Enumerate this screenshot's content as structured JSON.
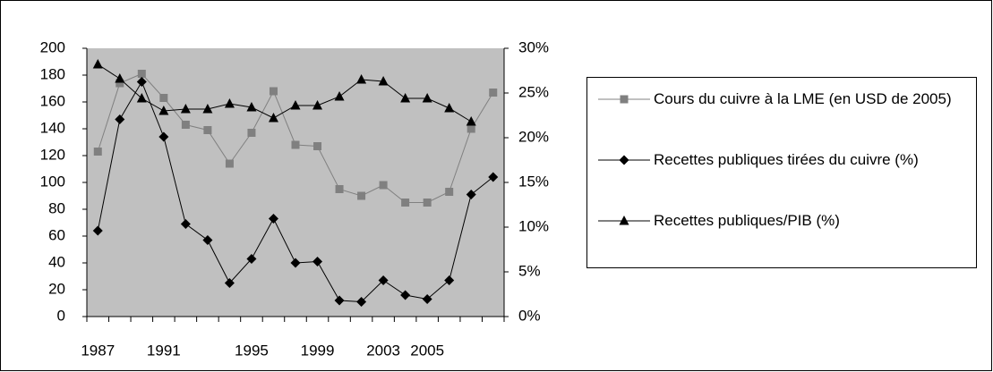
{
  "chart_data": {
    "type": "line",
    "categories": [
      "1987",
      null,
      null,
      "1991",
      null,
      null,
      null,
      "1995",
      null,
      null,
      "1999",
      null,
      null,
      "2003",
      null,
      "2005",
      null,
      null,
      null
    ],
    "ylim": [
      0,
      200
    ],
    "yticks": [
      0,
      20,
      40,
      60,
      80,
      100,
      120,
      140,
      160,
      180,
      200
    ],
    "y2lim": [
      0,
      30
    ],
    "y2ticks": [
      {
        "value": 0,
        "label": "0%"
      },
      {
        "value": 5,
        "label": "5%"
      },
      {
        "value": 10,
        "label": "10%"
      },
      {
        "value": 15,
        "label": "15%"
      },
      {
        "value": 20,
        "label": "20%"
      },
      {
        "value": 25,
        "label": "25%"
      },
      {
        "value": 30,
        "label": "30%"
      }
    ],
    "plot_background": "#c0c0c0",
    "series": [
      {
        "name": "Cours du cuivre à la LME (en USD de 2005)",
        "color": "#808080",
        "marker": "square",
        "values": [
          123,
          174,
          181,
          163,
          143,
          139,
          114,
          137,
          168,
          128,
          127,
          95,
          90,
          98,
          85,
          85,
          93,
          140,
          167
        ]
      },
      {
        "name": "Recettes publiques tirées du cuivre (%)",
        "color": "#000000",
        "marker": "diamond",
        "values": [
          64,
          147,
          175,
          134,
          69,
          57,
          25,
          43,
          73,
          40,
          41,
          12,
          11,
          27,
          16,
          13,
          27,
          91,
          104
        ]
      },
      {
        "name": "Recettes publiques/PIB (%)",
        "color": "#000000",
        "marker": "triangle",
        "axis": "y2",
        "values": [
          28.2,
          26.6,
          24.4,
          23.0,
          23.2,
          23.2,
          23.8,
          23.4,
          22.2,
          23.6,
          23.6,
          24.6,
          26.5,
          26.3,
          24.4,
          24.4,
          23.3,
          21.8,
          null
        ]
      }
    ]
  }
}
